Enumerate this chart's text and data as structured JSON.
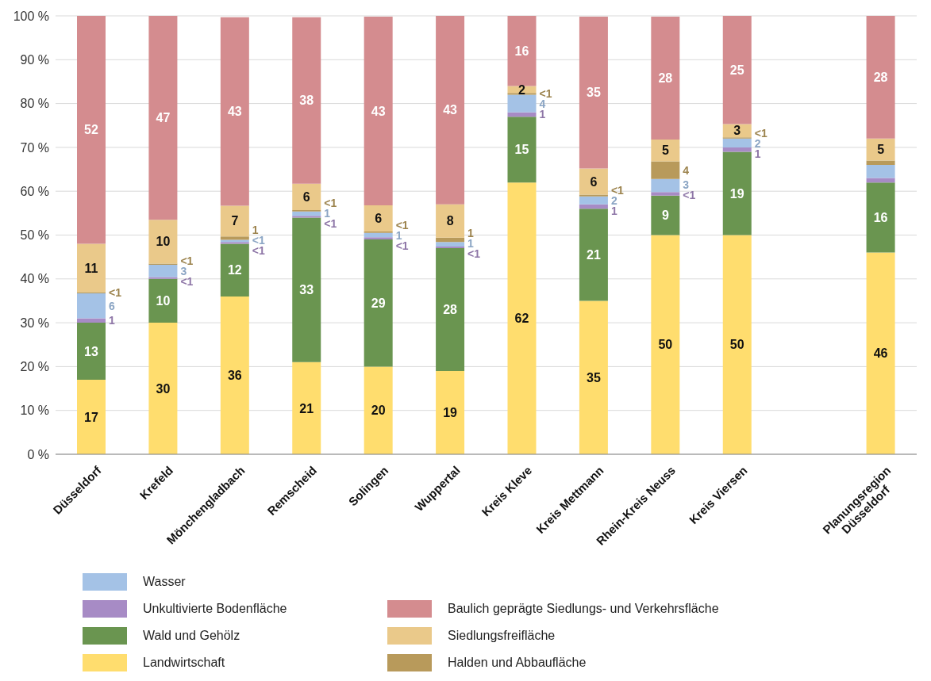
{
  "chart_data": {
    "type": "bar",
    "stacked": true,
    "categories": [
      "Düsseldorf",
      "Krefeld",
      "Mönchengladbach",
      "Remscheid",
      "Solingen",
      "Wuppertal",
      "Kreis Kleve",
      "Kreis Mettmann",
      "Rhein-Kreis Neuss",
      "Kreis Viersen",
      null,
      "Planungsregion\nDüsseldorf"
    ],
    "series": [
      {
        "name": "Landwirtschaft",
        "color": "#ffdd6e",
        "values": [
          17,
          30,
          36,
          21,
          20,
          19,
          62,
          35,
          50,
          50,
          null,
          46
        ],
        "value_labels": [
          "17",
          "30",
          "36",
          "21",
          "20",
          "19",
          "62",
          "35",
          "50",
          "50",
          null,
          "46"
        ]
      },
      {
        "name": "Wald und Gehölz",
        "color": "#6a9550",
        "values": [
          13,
          10,
          12,
          33,
          29,
          28,
          15,
          21,
          9,
          19,
          null,
          16
        ],
        "value_labels": [
          "13",
          "10",
          "12",
          "33",
          "29",
          "28",
          "15",
          "21",
          "9",
          "19",
          null,
          "16"
        ]
      },
      {
        "name": "Unkultivierte Bodenfläche",
        "color": "#a78bc5",
        "values": [
          1,
          0.4,
          0.4,
          0.4,
          0.5,
          0.4,
          1,
          1,
          0.8,
          1,
          null,
          1
        ],
        "value_labels": [
          "1",
          "<1",
          "<1",
          "<1",
          "<1",
          "<1",
          "1",
          "1",
          "<1",
          "1",
          null,
          null
        ]
      },
      {
        "name": "Wasser",
        "color": "#a4c2e6",
        "values": [
          5.7,
          2.8,
          0.5,
          1,
          1,
          1,
          4,
          1.8,
          3,
          2,
          null,
          3
        ],
        "value_labels": [
          "6",
          "3",
          "<1",
          "1",
          "1",
          "1",
          "4",
          "2",
          "3",
          "2",
          null,
          null
        ]
      },
      {
        "name": "Halden und Abbaufläche",
        "color": "#b89a5b",
        "values": [
          0.3,
          0.3,
          0.8,
          0.3,
          0.3,
          1,
          0.4,
          0.4,
          4,
          0.3,
          null,
          1
        ],
        "value_labels": [
          "<1",
          "<1",
          "1",
          "<1",
          "<1",
          "1",
          "<1",
          "<1",
          "4",
          "<1",
          null,
          null
        ]
      },
      {
        "name": "Siedlungsfreifläche",
        "color": "#eac98a",
        "values": [
          11,
          10,
          7,
          6,
          6,
          7.6,
          1.6,
          6,
          5,
          3,
          null,
          5
        ],
        "value_labels": [
          "11",
          "10",
          "7",
          "6",
          "6",
          "8",
          "2",
          "6",
          "5",
          "3",
          null,
          "5"
        ]
      },
      {
        "name": "Baulich geprägte Siedlungs- und Verkehrsfläche",
        "color": "#d48c8f",
        "values": [
          52,
          46.5,
          43,
          38,
          43,
          43,
          16,
          34.6,
          28,
          24.7,
          null,
          28
        ],
        "value_labels": [
          "52",
          "47",
          "43",
          "38",
          "43",
          "43",
          "16",
          "35",
          "28",
          "25",
          null,
          "28"
        ]
      }
    ],
    "ylim": [
      0,
      100
    ],
    "yticks": [
      {
        "value": 0,
        "label": "0 %"
      },
      {
        "value": 10,
        "label": "10 %"
      },
      {
        "value": 20,
        "label": "20 %"
      },
      {
        "value": 30,
        "label": "30 %"
      },
      {
        "value": 40,
        "label": "40 %"
      },
      {
        "value": 50,
        "label": "50 %"
      },
      {
        "value": 60,
        "label": "60 %"
      },
      {
        "value": 70,
        "label": "70 %"
      },
      {
        "value": 80,
        "label": "80 %"
      },
      {
        "value": 90,
        "label": "90 %"
      },
      {
        "value": 100,
        "label": "100 %"
      }
    ],
    "grid": "y",
    "legend": "bottom"
  }
}
